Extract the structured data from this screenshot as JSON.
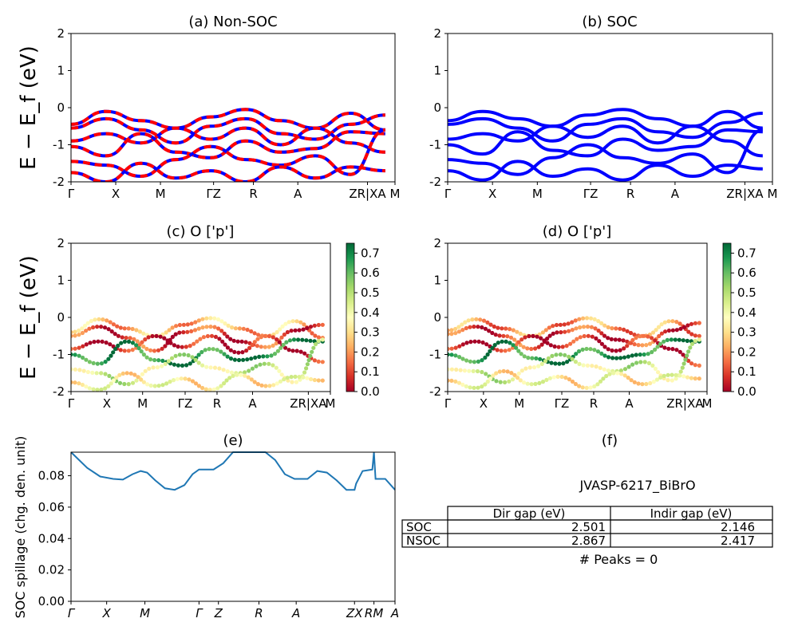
{
  "figure": {
    "ylabel": "E − E_f (eV)",
    "accent_colors": {
      "nonsoc_a": "#ff0000",
      "nonsoc_b": "#0000ff",
      "soc": "#0000ff",
      "spillage": "#1f77b4"
    }
  },
  "chart_data": [
    {
      "panel": "a",
      "type": "line",
      "title": "(a) Non-SOC",
      "ylim": [
        -2,
        2
      ],
      "yticks": [
        2,
        1,
        0,
        -1,
        -2
      ],
      "xticks": [
        "Γ",
        "X",
        "M",
        "ΓZ",
        "R",
        "A",
        "ZR|XA",
        "M"
      ],
      "series": [
        {
          "values": [
            -0.45,
            -0.1,
            -0.35,
            -0.55,
            -0.25,
            -0.05,
            -0.35,
            -0.55,
            -0.15,
            -0.6
          ]
        },
        {
          "values": [
            -0.55,
            -0.3,
            -0.6,
            -0.95,
            -0.5,
            -0.3,
            -0.7,
            -0.85,
            -0.45,
            -0.2
          ]
        },
        {
          "values": [
            -0.9,
            -0.7,
            -0.95,
            -0.55,
            -0.85,
            -0.55,
            -1.0,
            -0.55,
            -0.95,
            -1.2
          ]
        },
        {
          "values": [
            -1.05,
            -1.3,
            -0.7,
            -1.2,
            -1.35,
            -0.9,
            -1.2,
            -1.1,
            -0.65,
            -0.7
          ]
        },
        {
          "values": [
            -1.45,
            -1.55,
            -1.85,
            -1.4,
            -1.05,
            -1.4,
            -1.55,
            -1.3,
            -1.8,
            -0.6
          ]
        },
        {
          "values": [
            -1.75,
            -2.0,
            -1.5,
            -1.9,
            -1.7,
            -2.0,
            -1.6,
            -1.9,
            -1.6,
            -1.7
          ]
        }
      ]
    },
    {
      "panel": "b",
      "type": "line",
      "title": "(b) SOC",
      "ylim": [
        -2,
        2
      ],
      "yticks": [
        2,
        1,
        0,
        -1,
        -2
      ],
      "xticks": [
        "Γ",
        "X",
        "M",
        "ΓZ",
        "R",
        "A",
        "ZR|XA",
        "M"
      ],
      "series": [
        {
          "values": [
            -0.35,
            -0.1,
            -0.3,
            -0.5,
            -0.2,
            -0.05,
            -0.3,
            -0.5,
            -0.1,
            -0.55
          ]
        },
        {
          "values": [
            -0.45,
            -0.3,
            -0.55,
            -0.9,
            -0.45,
            -0.3,
            -0.65,
            -0.8,
            -0.4,
            -0.15
          ]
        },
        {
          "values": [
            -0.85,
            -0.7,
            -0.9,
            -0.5,
            -0.8,
            -0.5,
            -0.95,
            -0.5,
            -0.9,
            -1.3
          ]
        },
        {
          "values": [
            -1.0,
            -1.25,
            -0.65,
            -1.15,
            -1.3,
            -0.85,
            -1.15,
            -1.05,
            -0.6,
            -0.65
          ]
        },
        {
          "values": [
            -1.4,
            -1.5,
            -1.8,
            -1.35,
            -1.0,
            -1.35,
            -1.5,
            -1.25,
            -1.75,
            -0.6
          ]
        },
        {
          "values": [
            -1.7,
            -1.95,
            -1.45,
            -1.85,
            -1.65,
            -1.95,
            -1.55,
            -1.85,
            -1.55,
            -1.65
          ]
        }
      ]
    },
    {
      "panel": "c",
      "type": "scatter",
      "title": "(c)  O ['p']",
      "ylim": [
        -2,
        2
      ],
      "yticks": [
        2,
        1,
        0,
        -1,
        -2
      ],
      "xticks": [
        "Γ",
        "X",
        "M",
        "ΓZ",
        "R",
        "A",
        "ZR|XA",
        "M"
      ],
      "colorbar": {
        "min": 0.0,
        "max": 0.75,
        "ticks": [
          "0.7",
          "0.6",
          "0.5",
          "0.4",
          "0.3",
          "0.2",
          "0.1",
          "0.0"
        ],
        "cmap": "RdYlGn"
      },
      "series": [
        {
          "values": [
            -0.4,
            -0.05,
            -0.3,
            -0.5,
            -0.2,
            -0.02,
            -0.3,
            -0.5,
            -0.1,
            -0.55
          ],
          "weight": 0.25
        },
        {
          "values": [
            -0.5,
            -0.25,
            -0.55,
            -0.9,
            -0.4,
            -0.25,
            -0.65,
            -0.8,
            -0.35,
            -0.2
          ],
          "weight": 0.1
        },
        {
          "values": [
            -0.85,
            -0.65,
            -0.9,
            -0.5,
            -0.8,
            -0.5,
            -0.95,
            -0.5,
            -0.9,
            -1.2
          ],
          "weight": 0.05
        },
        {
          "values": [
            -1.0,
            -1.25,
            -0.65,
            -1.15,
            -1.3,
            -0.85,
            -1.15,
            -1.05,
            -0.6,
            -0.65
          ],
          "weight": 0.7
        },
        {
          "values": [
            -1.4,
            -1.5,
            -1.8,
            -1.35,
            -1.0,
            -1.35,
            -1.5,
            -1.25,
            -1.75,
            -0.6
          ],
          "weight": 0.45
        },
        {
          "values": [
            -1.75,
            -1.95,
            -1.5,
            -1.85,
            -1.65,
            -1.95,
            -1.55,
            -1.85,
            -1.6,
            -1.7
          ],
          "weight": 0.35
        }
      ]
    },
    {
      "panel": "d",
      "type": "scatter",
      "title": "(d) O ['p']",
      "ylim": [
        -2,
        2
      ],
      "yticks": [
        2,
        1,
        0,
        -1,
        -2
      ],
      "xticks": [
        "Γ",
        "X",
        "M",
        "ΓZ",
        "R",
        "A",
        "ZR|XA",
        "M"
      ],
      "colorbar": {
        "min": 0.0,
        "max": 0.75,
        "ticks": [
          "0.7",
          "0.6",
          "0.5",
          "0.4",
          "0.3",
          "0.2",
          "0.1",
          "0.0"
        ],
        "cmap": "RdYlGn"
      },
      "series": [
        {
          "values": [
            -0.35,
            -0.05,
            -0.3,
            -0.5,
            -0.2,
            -0.02,
            -0.3,
            -0.5,
            -0.1,
            -0.5
          ],
          "weight": 0.2
        },
        {
          "values": [
            -0.45,
            -0.25,
            -0.5,
            -0.85,
            -0.4,
            -0.25,
            -0.6,
            -0.75,
            -0.35,
            -0.15
          ],
          "weight": 0.1
        },
        {
          "values": [
            -0.85,
            -0.65,
            -0.9,
            -0.5,
            -0.8,
            -0.5,
            -0.9,
            -0.5,
            -0.85,
            -1.3
          ],
          "weight": 0.05
        },
        {
          "values": [
            -1.0,
            -1.2,
            -0.65,
            -1.1,
            -1.25,
            -0.85,
            -1.1,
            -1.0,
            -0.6,
            -0.65
          ],
          "weight": 0.7
        },
        {
          "values": [
            -1.4,
            -1.45,
            -1.75,
            -1.35,
            -1.0,
            -1.3,
            -1.45,
            -1.2,
            -1.7,
            -0.6
          ],
          "weight": 0.45
        },
        {
          "values": [
            -1.7,
            -1.9,
            -1.45,
            -1.8,
            -1.6,
            -1.9,
            -1.5,
            -1.8,
            -1.55,
            -1.65
          ],
          "weight": 0.35
        }
      ]
    },
    {
      "panel": "e",
      "type": "line",
      "title": "(e)",
      "ylabel": "SOC spillage (chg. den. unit)",
      "ylim": [
        0.0,
        0.095
      ],
      "yticks": [
        "0.08",
        "0.06",
        "0.04",
        "0.02",
        "0.00"
      ],
      "xticks": [
        "Γ",
        "X",
        "M",
        "Γ",
        "Z",
        "R",
        "A",
        "ZX",
        "RM",
        "A"
      ],
      "x": [
        0,
        0.05,
        0.09,
        0.13,
        0.16,
        0.19,
        0.215,
        0.235,
        0.26,
        0.29,
        0.32,
        0.35,
        0.375,
        0.395,
        0.44,
        0.47,
        0.5,
        0.53,
        0.56,
        0.6,
        0.63,
        0.66,
        0.69,
        0.73,
        0.76,
        0.79,
        0.82,
        0.85,
        0.875,
        0.88,
        0.9,
        0.93,
        0.935,
        0.94,
        0.97,
        1.0
      ],
      "values": [
        0.095,
        0.085,
        0.0795,
        0.078,
        0.0775,
        0.081,
        0.083,
        0.082,
        0.077,
        0.072,
        0.071,
        0.074,
        0.081,
        0.084,
        0.084,
        0.088,
        0.095,
        0.095,
        0.095,
        0.095,
        0.09,
        0.081,
        0.078,
        0.078,
        0.083,
        0.082,
        0.077,
        0.071,
        0.071,
        0.075,
        0.083,
        0.084,
        0.095,
        0.078,
        0.078,
        0.071
      ]
    },
    {
      "panel": "f",
      "type": "table",
      "title": "(f)",
      "caption": "JVASP-6217_BiBrO",
      "columns": [
        "Dir gap (eV)",
        "Indir gap (eV)"
      ],
      "rows": [
        {
          "label": "SOC",
          "cells": [
            "2.501",
            "2.146"
          ]
        },
        {
          "label": "NSOC",
          "cells": [
            "2.867",
            "2.417"
          ]
        }
      ],
      "footer": "# Peaks = 0"
    }
  ]
}
